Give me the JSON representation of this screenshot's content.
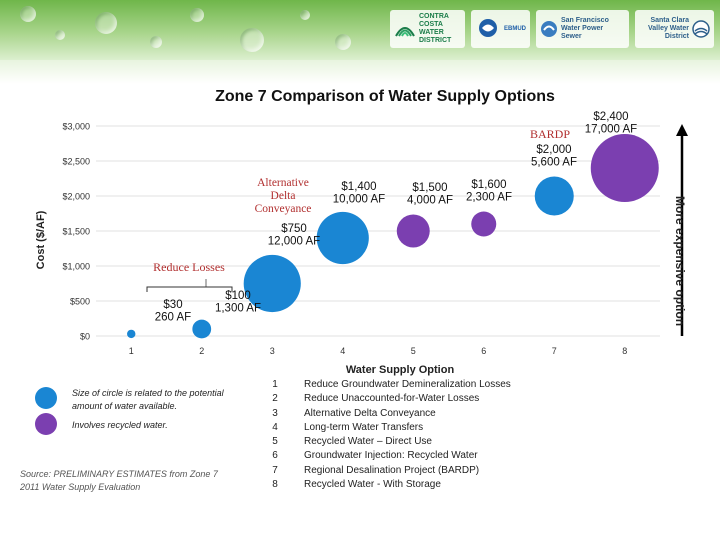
{
  "banner": {
    "logos": [
      {
        "name": "Contra Costa Water District",
        "text": "CONTRA COSTA WATER DISTRICT"
      },
      {
        "name": "EBMUD",
        "text": "EBMUD"
      },
      {
        "name": "San Francisco Water Power Sewer",
        "text": "San Francisco Water Power Sewer"
      },
      {
        "name": "Santa Clara Valley Water District",
        "text": "Santa Clara Valley Water District"
      }
    ]
  },
  "colors": {
    "blue": "#1a86d3",
    "purple": "#7b3fb0",
    "annotation_red": "#b12f2f"
  },
  "chart_data": {
    "type": "scatter",
    "title": "Zone 7 Comparison of Water Supply Options",
    "xlabel": "Water Supply Option",
    "ylabel": "Cost ($/AF)",
    "xlim": [
      0.5,
      8.5
    ],
    "ylim": [
      0,
      3000
    ],
    "x_ticks": [
      1,
      2,
      3,
      4,
      5,
      6,
      7,
      8
    ],
    "y_ticks": [
      0,
      500,
      1000,
      1500,
      2000,
      2500,
      3000
    ],
    "y_tick_labels": [
      "$0",
      "$500",
      "$1,000",
      "$1,500",
      "$2,000",
      "$2,500",
      "$3,000"
    ],
    "right_axis_label": "More expensive option",
    "points": [
      {
        "x": 1,
        "y": 30,
        "volume_af": 260,
        "recycled": false,
        "label": [
          "$30",
          "260 AF"
        ]
      },
      {
        "x": 2,
        "y": 100,
        "volume_af": 1300,
        "recycled": false,
        "label": [
          "$100",
          "1,300 AF"
        ]
      },
      {
        "x": 3,
        "y": 750,
        "volume_af": 12000,
        "recycled": false,
        "label": [
          "$750",
          "12,000 AF"
        ]
      },
      {
        "x": 4,
        "y": 1400,
        "volume_af": 10000,
        "recycled": false,
        "label": [
          "$1,400",
          "10,000 AF"
        ]
      },
      {
        "x": 5,
        "y": 1500,
        "volume_af": 4000,
        "recycled": true,
        "label": [
          "$1,500",
          "4,000 AF"
        ]
      },
      {
        "x": 6,
        "y": 1600,
        "volume_af": 2300,
        "recycled": true,
        "label": [
          "$1,600",
          "2,300 AF"
        ]
      },
      {
        "x": 7,
        "y": 2000,
        "volume_af": 5600,
        "recycled": false,
        "label": [
          "$2,000",
          "5,600 AF"
        ]
      },
      {
        "x": 8,
        "y": 2400,
        "volume_af": 17000,
        "recycled": true,
        "label": [
          "$2,400",
          "17,000 AF"
        ]
      }
    ],
    "annotations": [
      "BARDP",
      "Alternative Delta Conveyance",
      "Reduce Losses"
    ]
  },
  "legend": {
    "blue_text": "Size of circle is related to the potential amount of water available.",
    "purple_text": "Involves recycled water."
  },
  "source": "Source: PRELIMINARY ESTIMATES from Zone 7 2011 Water Supply Evaluation",
  "options_key": [
    {
      "num": "1",
      "label": "Reduce Groundwater Demineralization Losses"
    },
    {
      "num": "2",
      "label": "Reduce Unaccounted-for-Water Losses"
    },
    {
      "num": "3",
      "label": "Alternative Delta Conveyance"
    },
    {
      "num": "4",
      "label": "Long-term Water Transfers"
    },
    {
      "num": "5",
      "label": "Recycled Water – Direct Use"
    },
    {
      "num": "6",
      "label": "Groundwater Injection: Recycled Water"
    },
    {
      "num": "7",
      "label": "Regional Desalination Project (BARDP)"
    },
    {
      "num": "8",
      "label": "Recycled Water - With Storage"
    }
  ]
}
